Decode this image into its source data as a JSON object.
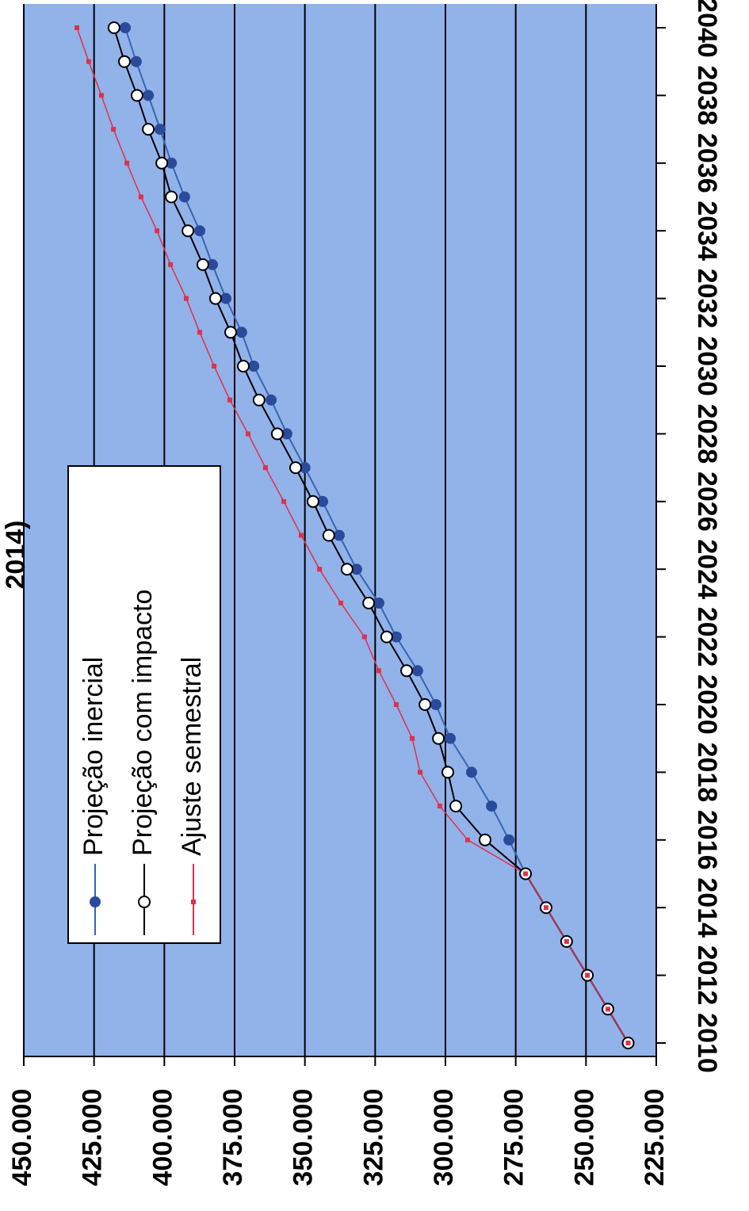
{
  "chart_data": {
    "type": "line",
    "title": "2014)",
    "x": [
      2010,
      2011,
      2012,
      2013,
      2014,
      2015,
      2016,
      2017,
      2018,
      2019,
      2020,
      2021,
      2022,
      2023,
      2024,
      2025,
      2026,
      2027,
      2028,
      2029,
      2030,
      2031,
      2032,
      2033,
      2034,
      2035,
      2036,
      2037,
      2038,
      2039,
      2040
    ],
    "xlim": [
      2010,
      2040
    ],
    "xticks": [
      2010,
      2012,
      2014,
      2016,
      2018,
      2020,
      2022,
      2024,
      2026,
      2028,
      2030,
      2032,
      2034,
      2036,
      2038,
      2040
    ],
    "ylim": [
      225000,
      450000
    ],
    "yticks": [
      {
        "value": 225000,
        "label": "225.000"
      },
      {
        "value": 250000,
        "label": "250.000"
      },
      {
        "value": 275000,
        "label": "275.000"
      },
      {
        "value": 300000,
        "label": "300.000"
      },
      {
        "value": 325000,
        "label": "325.000"
      },
      {
        "value": 350000,
        "label": "350.000"
      },
      {
        "value": 375000,
        "label": "375.000"
      },
      {
        "value": 400000,
        "label": "400.000"
      },
      {
        "value": 425000,
        "label": "425.000"
      },
      {
        "value": 450000,
        "label": "450.000"
      }
    ],
    "grid": true,
    "series": [
      {
        "name": "Projeção inercial",
        "color": "#3566b0",
        "marker": "dot",
        "values": [
          235000,
          242200,
          249500,
          256900,
          264200,
          271500,
          277400,
          283600,
          290700,
          298300,
          303400,
          309900,
          317500,
          323700,
          331600,
          337800,
          343700,
          350000,
          356400,
          362000,
          368200,
          372500,
          378100,
          382900,
          387400,
          392800,
          397500,
          401500,
          405700,
          410000,
          413900
        ]
      },
      {
        "name": "Projeção com impacto",
        "color": "#000000",
        "marker": "circle",
        "values": [
          235000,
          242200,
          249500,
          256900,
          264200,
          271500,
          285900,
          296300,
          299150,
          302500,
          307300,
          313800,
          320900,
          327300,
          335000,
          341500,
          347100,
          353300,
          359800,
          366300,
          371900,
          376400,
          381800,
          386300,
          391600,
          397500,
          400900,
          405700,
          409700,
          414200,
          417900
        ]
      },
      {
        "name": "Ajuste semestral",
        "color": "#e0304a",
        "marker": "square",
        "values": [
          235000,
          242200,
          249500,
          256900,
          264200,
          271500,
          292100,
          302000,
          309000,
          311800,
          317500,
          323700,
          328800,
          337200,
          344800,
          351300,
          357500,
          364000,
          370200,
          376700,
          382300,
          387400,
          392200,
          397800,
          402600,
          408300,
          413300,
          418100,
          422400,
          426900,
          431100
        ]
      }
    ]
  }
}
